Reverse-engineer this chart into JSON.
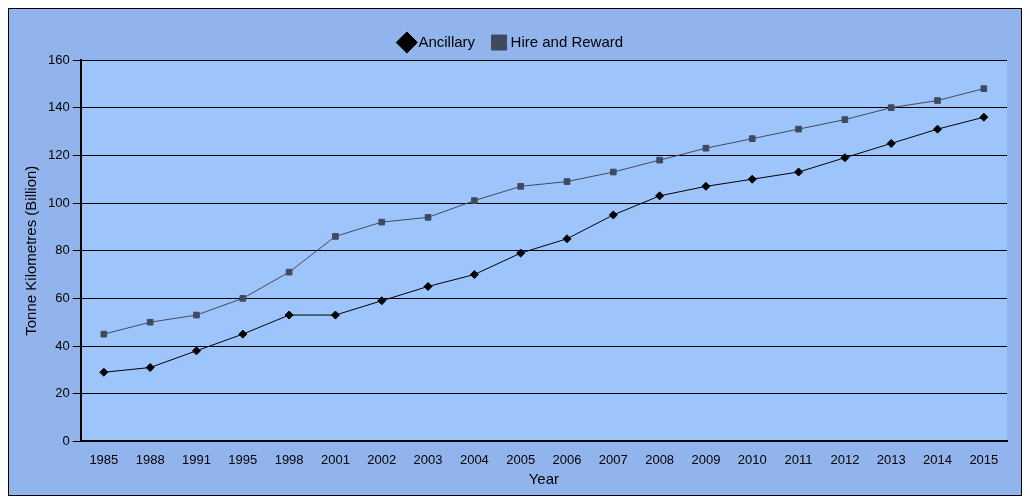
{
  "chart_data": {
    "type": "line",
    "xlabel": "Year",
    "ylabel": "Tonne Kilometres (Billion)",
    "categories": [
      "1985",
      "1988",
      "1991",
      "1995",
      "1998",
      "2001",
      "2002",
      "2003",
      "2004",
      "2005",
      "2006",
      "2007",
      "2008",
      "2009",
      "2010",
      "2011",
      "2012",
      "2013",
      "2014",
      "2015"
    ],
    "series": [
      {
        "name": "Ancillary",
        "color": "#000000",
        "marker": "diamond",
        "values": [
          29,
          31,
          38,
          45,
          53,
          53,
          59,
          65,
          70,
          79,
          85,
          95,
          103,
          107,
          110,
          113,
          119,
          125,
          131,
          136
        ]
      },
      {
        "name": "Hire and Reward",
        "color": "#404a5e",
        "marker": "square",
        "values": [
          45,
          50,
          53,
          60,
          71,
          86,
          92,
          94,
          101,
          107,
          109,
          113,
          118,
          123,
          127,
          131,
          135,
          140,
          143,
          148
        ]
      }
    ],
    "ylim": [
      0,
      160
    ],
    "yticks": [
      0,
      20,
      40,
      60,
      80,
      100,
      120,
      140,
      160
    ],
    "grid": "y",
    "legend": "top",
    "line_style": "solid"
  }
}
